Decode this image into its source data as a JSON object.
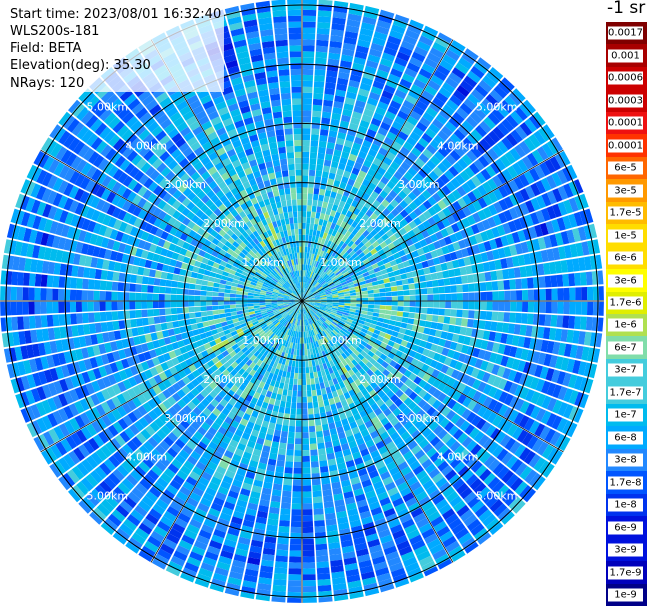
{
  "info": {
    "start_time": "Start time: 2023/08/01 16:32:40",
    "instrument": "WLS200s-181",
    "field": "Field: BETA",
    "elevation": "Elevation(deg): 35.30",
    "nrays": "NRays: 120"
  },
  "colorbar": {
    "unit_label": "-1 sr",
    "colors": [
      "#7f0000",
      "#a80000",
      "#cc0000",
      "#ee1111",
      "#ff3300",
      "#ff6600",
      "#ff9900",
      "#ffbb00",
      "#ffdd00",
      "#ffff00",
      "#e0ee00",
      "#b0e050",
      "#80ddaa",
      "#44ccdd",
      "#00bbee",
      "#00aaff",
      "#2288ff",
      "#0055ff",
      "#0033ee",
      "#0011dd",
      "#0000bb",
      "#000088"
    ],
    "labels": [
      "0.0017",
      "0.001",
      "0.0006",
      "0.0003",
      "0.00017",
      "0.0001",
      "6e-5",
      "3e-5",
      "1.7e-5",
      "1e-5",
      "6e-6",
      "3e-6",
      "1.7e-6",
      "1e-6",
      "6e-7",
      "3e-7",
      "1.7e-7",
      "1e-7",
      "6e-8",
      "3e-8",
      "1.7e-8",
      "1e-8",
      "6e-9",
      "3e-9",
      "1.7e-9",
      "1e-9"
    ]
  },
  "chart_data": {
    "type": "heatmap",
    "projection": "polar-ppi",
    "field": "BETA",
    "elevation_deg": 35.3,
    "nrays": 120,
    "range_rings_km": [
      1.0,
      2.0,
      3.0,
      4.0,
      5.0
    ],
    "ring_labels": [
      "1.00km",
      "2.00km",
      "3.00km",
      "4.00km",
      "5.00km"
    ],
    "max_range_km": 5.1,
    "spokes_deg": [
      0,
      30,
      60,
      90,
      120,
      150
    ],
    "value_scale": "log",
    "value_range": [
      1e-09,
      0.0017
    ],
    "typical_values_by_range_km": [
      {
        "range_km": 0.5,
        "value": 1.7e-07
      },
      {
        "range_km": 1.5,
        "value": 1.7e-07
      },
      {
        "range_km": 2.5,
        "value": 1e-07
      },
      {
        "range_km": 3.5,
        "value": 6e-08
      },
      {
        "range_km": 4.5,
        "value": 3e-08
      },
      {
        "range_km": 5.0,
        "value": 6e-08
      }
    ]
  }
}
